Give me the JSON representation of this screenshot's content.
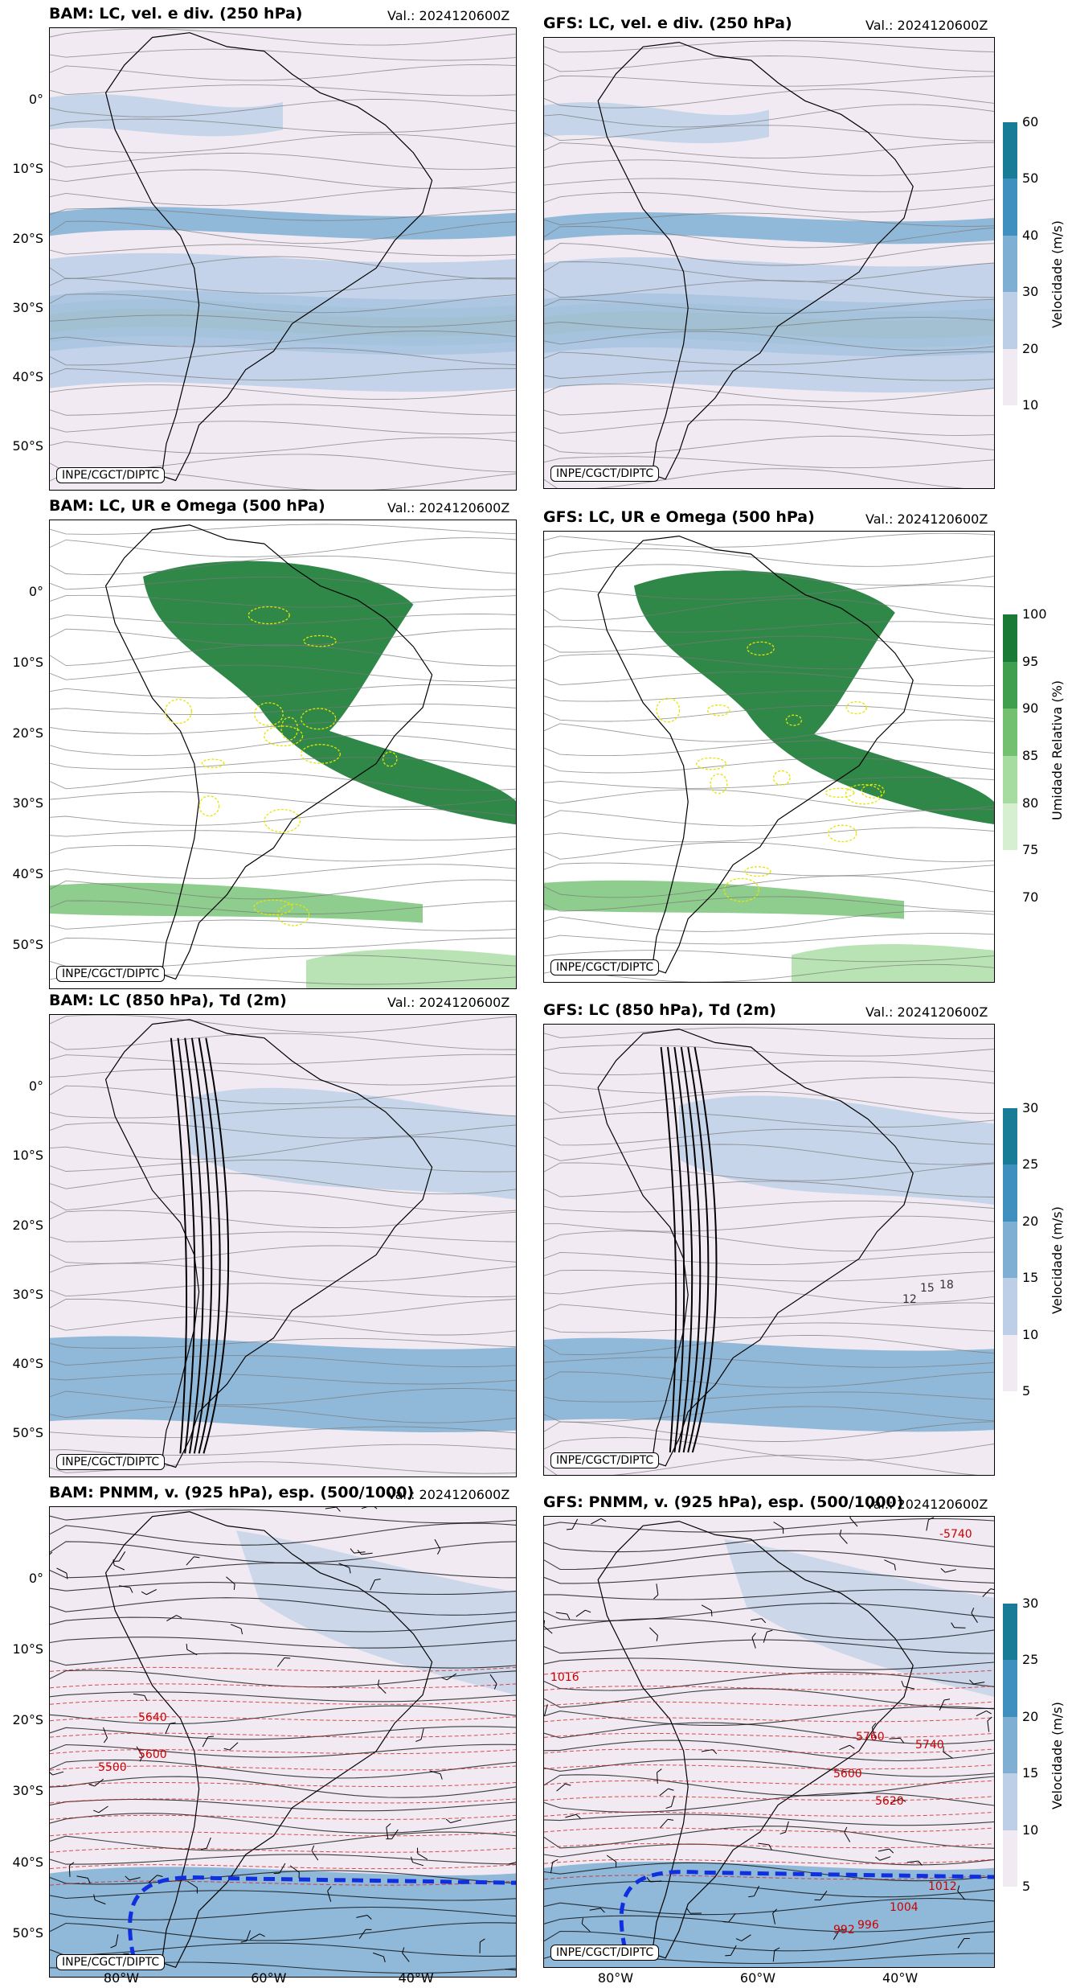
{
  "valid_label": "Val.: 2024120600Z",
  "credit": "INPE/CGCT/DIPTC",
  "lat_labels": [
    "0°",
    "10°S",
    "20°S",
    "30°S",
    "40°S",
    "50°S"
  ],
  "lon_labels": [
    "80°W",
    "60°W",
    "40°W"
  ],
  "rows": [
    {
      "left_title": "BAM: LC, vel. e div. (250 hPa)",
      "right_title": "GFS: LC, vel. e div. (250 hPa)",
      "colorbar": {
        "label": "Velocidade (m/s)",
        "ticks": [
          "10",
          "20",
          "30",
          "40",
          "50",
          "60"
        ],
        "colors": [
          "#f1eaf3",
          "#bccfe6",
          "#7fb0d4",
          "#3f8fbf",
          "#187c97",
          "#0b6c56"
        ]
      }
    },
    {
      "left_title": "BAM: LC, UR e Omega (500 hPa)",
      "right_title": "GFS: LC, UR e Omega (500 hPa)",
      "colorbar": {
        "label": "Umidade Relativa (%)",
        "ticks": [
          "70",
          "75",
          "80",
          "85",
          "90",
          "95",
          "100"
        ],
        "colors": [
          "#ffffff",
          "#d6efd0",
          "#a7dca1",
          "#72c070",
          "#3f9f4f",
          "#187a34"
        ]
      }
    },
    {
      "left_title": "BAM: LC (850 hPa), Td (2m)",
      "right_title": "GFS: LC (850 hPa), Td (2m)",
      "colorbar": {
        "label": "Velocidade (m/s)",
        "ticks": [
          "5",
          "10",
          "15",
          "20",
          "25",
          "30"
        ],
        "colors": [
          "#f1eaf3",
          "#bccfe6",
          "#7fb0d4",
          "#3f8fbf",
          "#187c97",
          "#0b6c56"
        ]
      }
    },
    {
      "left_title": "BAM: PNMM, v. (925 hPa), esp. (500/1000)",
      "right_title": "GFS: PNMM, v. (925 hPa), esp. (500/1000)",
      "colorbar": {
        "label": "Velocidade (m/s)",
        "ticks": [
          "5",
          "10",
          "15",
          "20",
          "25",
          "30"
        ],
        "colors": [
          "#f1eaf3",
          "#bccfe6",
          "#7fb0d4",
          "#3f8fbf",
          "#187c97",
          "#0b6c56"
        ]
      }
    }
  ],
  "contour_labels_right_row4": [
    "-5740",
    "5760",
    "5740",
    "5620",
    "5600",
    "1016",
    "1012",
    "1004",
    "996",
    "992"
  ],
  "contour_labels_left_row4": [
    "5500",
    "5600",
    "5640"
  ],
  "contour_labels_right_row3": [
    "15",
    "18",
    "12"
  ],
  "colors": {
    "streamline": "#7a7a7a",
    "coast": "#000000",
    "thickness_contour": "#d62020",
    "isobar": "#000000",
    "zero_line": "#1030e0",
    "omega_contour": "#e5e500"
  }
}
